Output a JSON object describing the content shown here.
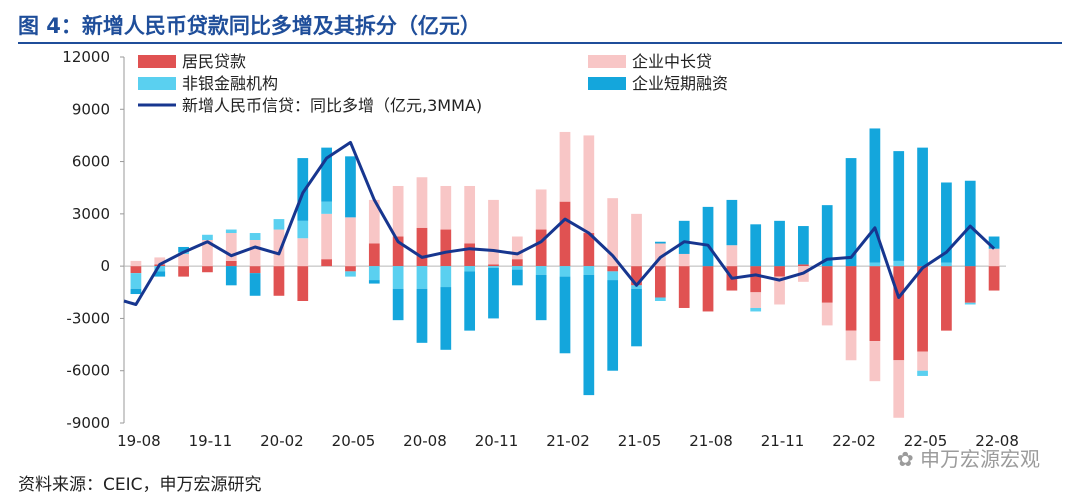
{
  "header": {
    "title": "图 4：新增人民币贷款同比多增及其拆分（亿元）"
  },
  "footer": {
    "source": "资料来源：CEIC，申万宏源研究",
    "watermark": "申万宏源宏观"
  },
  "colors": {
    "household": "#e05252",
    "corp_mid_long": "#f8c6c6",
    "nonbank": "#5ad0f0",
    "corp_short": "#14a6dc",
    "line": "#17368f"
  },
  "chart_data": {
    "type": "bar",
    "stacked": true,
    "ylim": [
      -9000,
      12000
    ],
    "yticks": [
      12000,
      9000,
      6000,
      3000,
      0,
      -3000,
      -6000,
      -9000
    ],
    "xtick_labels": [
      "19-08",
      "19-11",
      "20-02",
      "20-05",
      "20-08",
      "20-11",
      "21-02",
      "21-05",
      "21-08",
      "21-11",
      "22-02",
      "22-05",
      "22-08"
    ],
    "categories": [
      "19-08",
      "19-09",
      "19-10",
      "19-11",
      "19-12",
      "20-01",
      "20-02",
      "20-03",
      "20-04",
      "20-05",
      "20-06",
      "20-07",
      "20-08",
      "20-09",
      "20-10",
      "20-11",
      "20-12",
      "21-01",
      "21-02",
      "21-03",
      "21-04",
      "21-05",
      "21-06",
      "21-07",
      "21-08",
      "21-09",
      "21-10",
      "21-11",
      "21-12",
      "22-01",
      "22-02",
      "22-03",
      "22-04",
      "22-05",
      "22-06",
      "22-07",
      "22-08"
    ],
    "series": [
      {
        "name": "居民贷款",
        "key": "household",
        "values": [
          -400,
          100,
          -600,
          -350,
          300,
          -400,
          -1700,
          -2000,
          400,
          -300,
          1300,
          1700,
          2200,
          2100,
          1300,
          100,
          400,
          2100,
          3700,
          1900,
          -300,
          -1100,
          -1800,
          -2400,
          -2600,
          -1400,
          -1500,
          -600,
          100,
          -2100,
          -3700,
          -4300,
          -5400,
          -4900,
          -3700,
          -2100,
          -1400
        ]
      },
      {
        "name": "企业中长贷",
        "key": "corp_mid_long",
        "values": [
          300,
          400,
          700,
          1500,
          1600,
          1500,
          2100,
          1600,
          2600,
          2800,
          2500,
          2900,
          2900,
          2500,
          3300,
          3700,
          1300,
          2300,
          4000,
          5600,
          3900,
          3000,
          1300,
          700,
          0,
          1200,
          -900,
          -1600,
          -900,
          -1300,
          -1700,
          -2300,
          -3300,
          -1100,
          0,
          0,
          1000
        ]
      },
      {
        "name": "非银金融机构",
        "key": "nonbank",
        "values": [
          -900,
          -300,
          100,
          300,
          200,
          400,
          600,
          1000,
          700,
          -300,
          -800,
          -1300,
          -1300,
          -1200,
          -300,
          -100,
          -200,
          -500,
          -600,
          -500,
          -500,
          -200,
          -200,
          0,
          0,
          0,
          -200,
          0,
          0,
          0,
          0,
          200,
          300,
          -300,
          200,
          -100,
          0
        ]
      },
      {
        "name": "企业短期融资",
        "key": "corp_short",
        "values": [
          -300,
          -300,
          300,
          0,
          -1100,
          -1300,
          0,
          3600,
          3100,
          3500,
          -200,
          -1800,
          -3100,
          -3600,
          -3400,
          -2900,
          -900,
          -2600,
          -4400,
          -6900,
          -5200,
          -3300,
          100,
          1900,
          3400,
          2600,
          2400,
          2600,
          2200,
          3500,
          6200,
          7700,
          6300,
          6800,
          4600,
          4900,
          700
        ]
      }
    ],
    "line": {
      "name": "新增人民币信贷：同比多增（亿元,3MMA)",
      "start_value": -2000,
      "values": [
        -2200,
        100,
        800,
        1400,
        600,
        1100,
        700,
        4200,
        6200,
        7100,
        3800,
        1400,
        500,
        800,
        1000,
        900,
        700,
        1400,
        2700,
        1900,
        600,
        -1100,
        500,
        1400,
        1200,
        -700,
        -500,
        -800,
        -400,
        400,
        500,
        2200,
        -1800,
        -100,
        800,
        2300,
        1000
      ]
    },
    "legend": [
      {
        "label": "居民贷款",
        "kind": "bar",
        "color_key": "household"
      },
      {
        "label": "企业中长贷",
        "kind": "bar",
        "color_key": "corp_mid_long"
      },
      {
        "label": "非银金融机构",
        "kind": "bar",
        "color_key": "nonbank"
      },
      {
        "label": "企业短期融资",
        "kind": "bar",
        "color_key": "corp_short"
      },
      {
        "label": "新增人民币信贷：同比多增（亿元,3MMA)",
        "kind": "line",
        "color_key": "line"
      }
    ],
    "legend_position": "top"
  }
}
